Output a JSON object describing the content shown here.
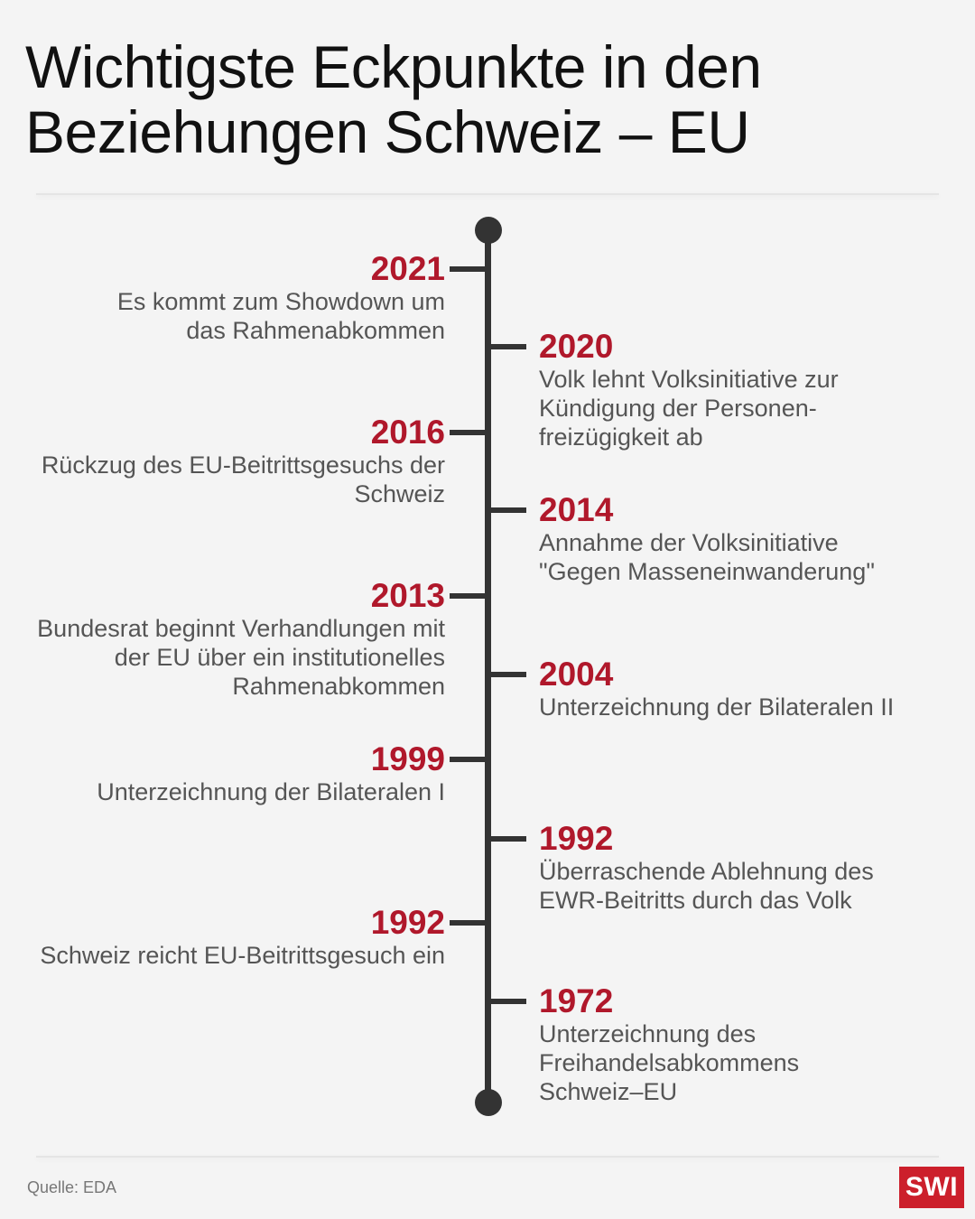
{
  "title": "Wichtigste Eckpunkte in den Beziehungen Schweiz – EU",
  "events": [
    {
      "year": "2021",
      "desc": "Es kommt zum Showdown um das Rahmenabkommen",
      "side": "left"
    },
    {
      "year": "2020",
      "desc": "Volk lehnt Volksinitiative zur Kündigung der Personen-freizügigkeit ab",
      "side": "right"
    },
    {
      "year": "2016",
      "desc": "Rückzug des EU-Beitrittsgesuchs der Schweiz",
      "side": "left"
    },
    {
      "year": "2014",
      "desc": "Annahme der Volksinitiative \"Gegen Masseneinwanderung\"",
      "side": "right"
    },
    {
      "year": "2013",
      "desc": "Bundesrat beginnt Verhandlungen mit der EU über ein institutionelles Rahmenabkommen",
      "side": "left"
    },
    {
      "year": "2004",
      "desc": "Unterzeichnung der Bilateralen II",
      "side": "right"
    },
    {
      "year": "1999",
      "desc": "Unterzeichnung der Bilateralen I",
      "side": "left"
    },
    {
      "year": "1992",
      "desc": "Überraschende Ablehnung des EWR-Beitritts durch das Volk",
      "side": "right"
    },
    {
      "year": "1992",
      "desc": "Schweiz reicht EU-Beitrittsgesuch ein",
      "side": "left"
    },
    {
      "year": "1972",
      "desc": "Unterzeichnung des Freihandelsabkommens Schweiz–EU",
      "side": "right"
    }
  ],
  "source": "Quelle:  EDA",
  "logo": "SWI",
  "colors": {
    "accent": "#b0182b",
    "axis": "#333333",
    "text": "#555555",
    "background": "#f4f4f4",
    "logo_bg": "#cc1f2b"
  }
}
